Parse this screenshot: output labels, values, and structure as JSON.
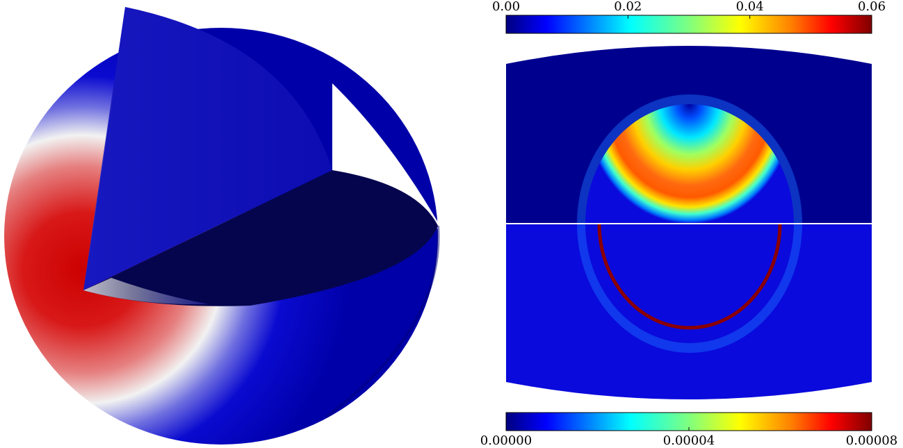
{
  "figure": {
    "left_panel": {
      "description_colors": {
        "cold": "#0a0ac8",
        "hot": "#d40000",
        "mid": "#f0f0f0",
        "cut_dark": "#05054e",
        "cut_face": "#1010b4"
      }
    },
    "top_colorbar": {
      "colormap": "jet",
      "range": [
        0.0,
        0.06
      ],
      "ticks": [
        {
          "value": 0.0,
          "label": "0.00"
        },
        {
          "value": 0.02,
          "label": "0.02"
        },
        {
          "value": 0.04,
          "label": "0.04"
        },
        {
          "value": 0.06,
          "label": "0.06"
        }
      ]
    },
    "bottom_colorbar": {
      "colormap": "jet",
      "range": [
        0.0,
        8e-05
      ],
      "ticks": [
        {
          "value": 0.0,
          "label": "0.00000"
        },
        {
          "value": 4e-05,
          "label": "0.00004"
        },
        {
          "value": 8e-05,
          "label": "0.00008"
        }
      ]
    },
    "colors": {
      "jet_stops": [
        "#00007f",
        "#0000ff",
        "#007fff",
        "#00ffff",
        "#7fff7f",
        "#ffff00",
        "#ff7f00",
        "#ff0000",
        "#7f0000"
      ],
      "background_field": "#00008f",
      "lower_field": "#0a0adc",
      "ring_outline": "#8b0000",
      "divider": "#ffffff"
    }
  }
}
